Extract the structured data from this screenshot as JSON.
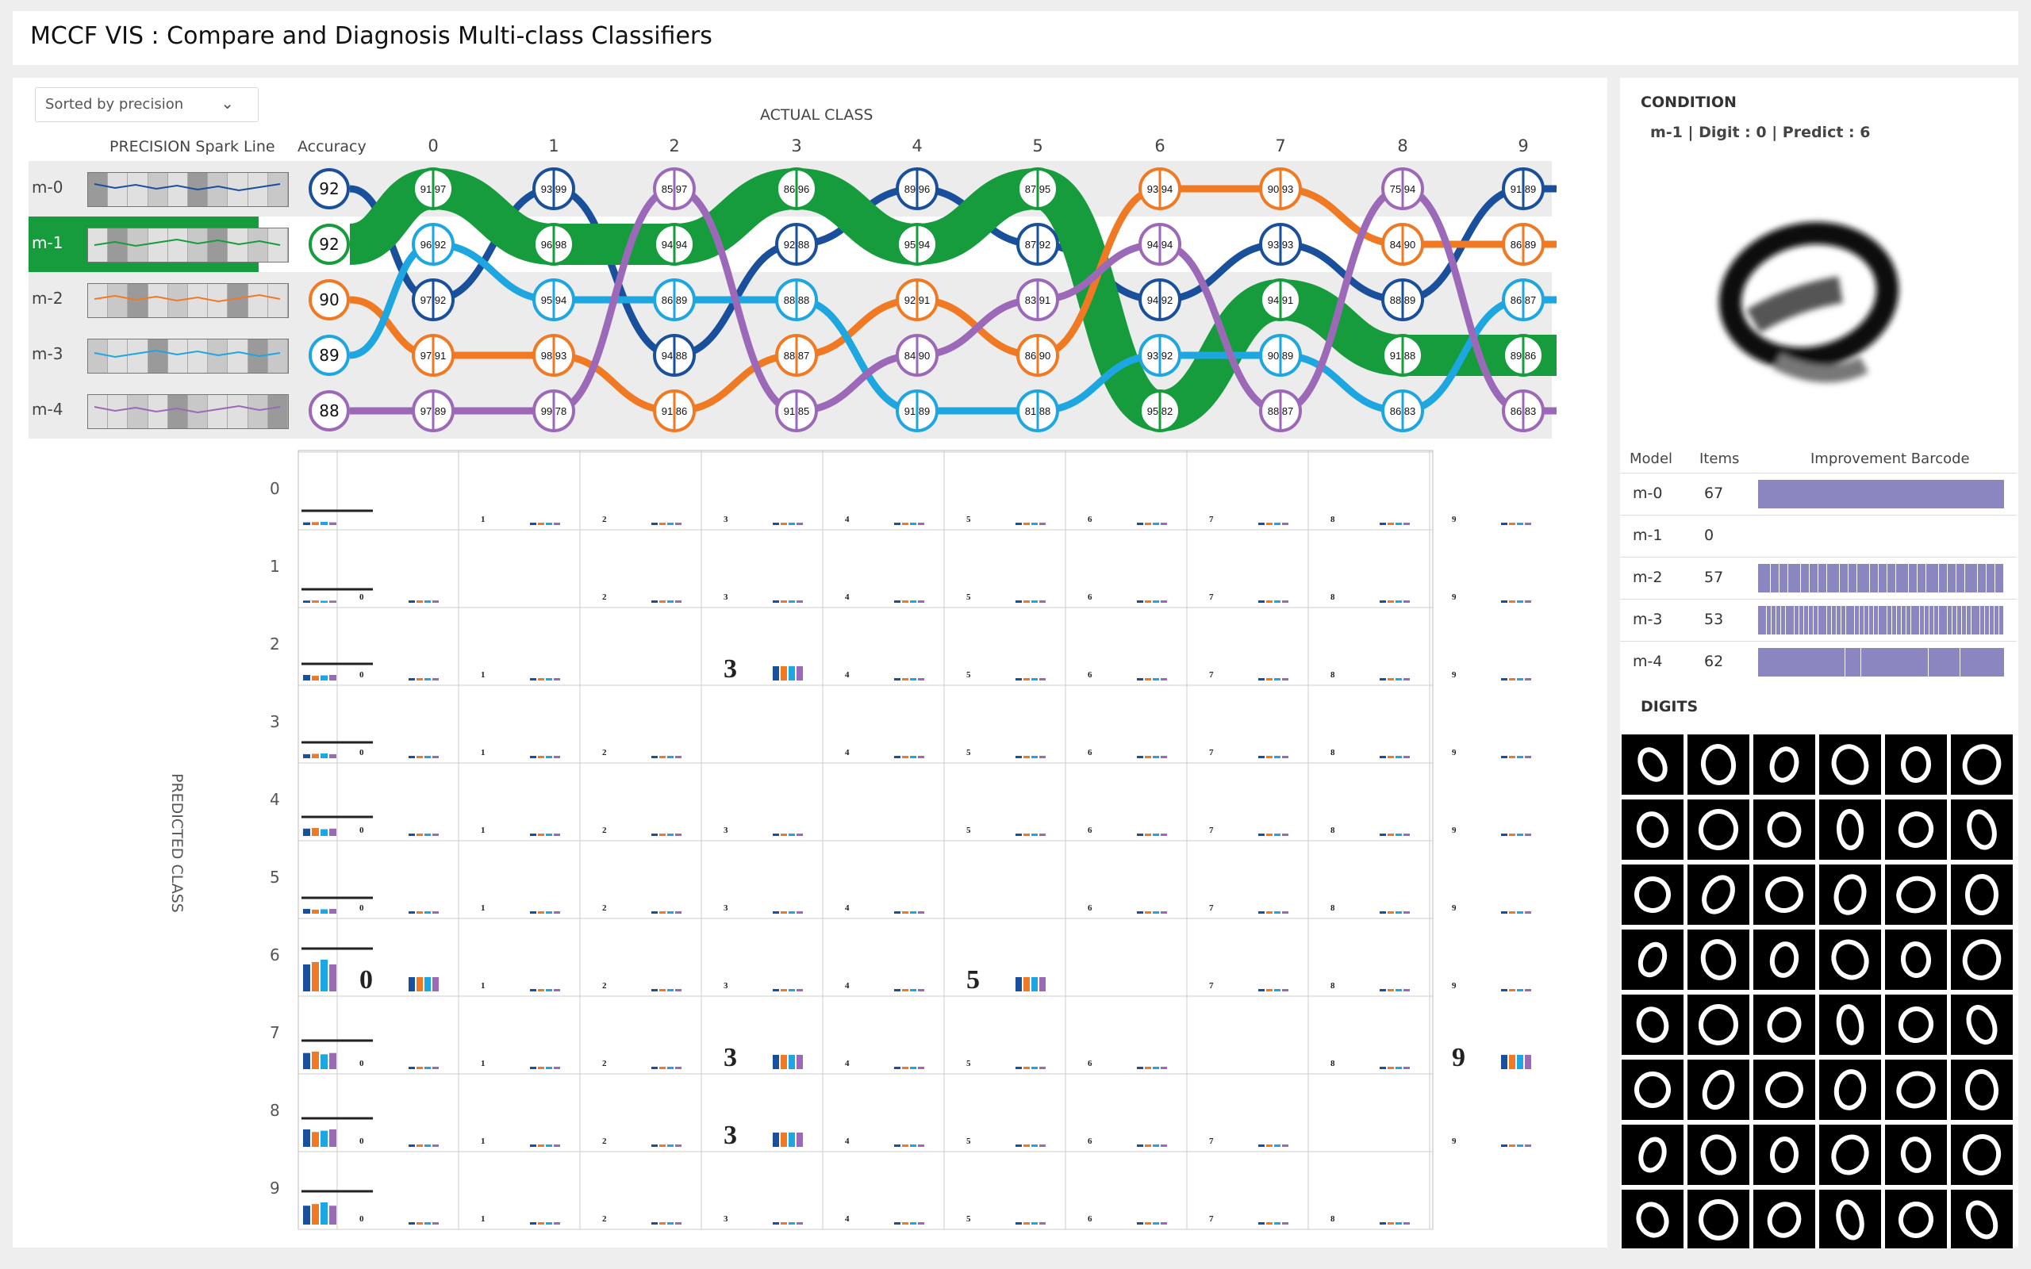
{
  "app": {
    "title": "MCCF VIS : Compare and Diagnosis Multi-class Classifiers"
  },
  "controls": {
    "sort_value": "Sorted by precision"
  },
  "headers": {
    "spark": "PRECISION Spark Line",
    "accuracy": "Accuracy",
    "actual": "ACTUAL CLASS",
    "predicted": "PREDICTED CLASS"
  },
  "classes": [
    "0",
    "1",
    "2",
    "3",
    "4",
    "5",
    "6",
    "7",
    "8",
    "9"
  ],
  "colors": {
    "m-0": "#1a4f9c",
    "m-1": "#169c3c",
    "m-2": "#f07a24",
    "m-3": "#1ea6e0",
    "m-4": "#9b69b8"
  },
  "models": [
    {
      "name": "m-0",
      "accuracy": "92",
      "selected": false
    },
    {
      "name": "m-1",
      "accuracy": "92",
      "selected": true
    },
    {
      "name": "m-2",
      "accuracy": "90",
      "selected": false
    },
    {
      "name": "m-3",
      "accuracy": "89",
      "selected": false
    },
    {
      "name": "m-4",
      "accuracy": "88",
      "selected": false
    }
  ],
  "class_columns": [
    {
      "class": "0",
      "nodes": [
        {
          "m": "m-1",
          "label": "91 97"
        },
        {
          "m": "m-3",
          "label": "96 92"
        },
        {
          "m": "m-0",
          "label": "97 92"
        },
        {
          "m": "m-2",
          "label": "97 91"
        },
        {
          "m": "m-4",
          "label": "97 89"
        }
      ]
    },
    {
      "class": "1",
      "nodes": [
        {
          "m": "m-0",
          "label": "93 99"
        },
        {
          "m": "m-1",
          "label": "96 98"
        },
        {
          "m": "m-3",
          "label": "95 94"
        },
        {
          "m": "m-2",
          "label": "98 93"
        },
        {
          "m": "m-4",
          "label": "99 78"
        }
      ]
    },
    {
      "class": "2",
      "nodes": [
        {
          "m": "m-4",
          "label": "85 97"
        },
        {
          "m": "m-1",
          "label": "94 94"
        },
        {
          "m": "m-3",
          "label": "86 89"
        },
        {
          "m": "m-0",
          "label": "94 88"
        },
        {
          "m": "m-2",
          "label": "91 86"
        }
      ]
    },
    {
      "class": "3",
      "nodes": [
        {
          "m": "m-1",
          "label": "86 96"
        },
        {
          "m": "m-0",
          "label": "92 88"
        },
        {
          "m": "m-3",
          "label": "88 88"
        },
        {
          "m": "m-2",
          "label": "88 87"
        },
        {
          "m": "m-4",
          "label": "91 85"
        }
      ]
    },
    {
      "class": "4",
      "nodes": [
        {
          "m": "m-0",
          "label": "89 96"
        },
        {
          "m": "m-1",
          "label": "95 94"
        },
        {
          "m": "m-2",
          "label": "92 91"
        },
        {
          "m": "m-4",
          "label": "84 90"
        },
        {
          "m": "m-3",
          "label": "91 89"
        }
      ]
    },
    {
      "class": "5",
      "nodes": [
        {
          "m": "m-1",
          "label": "87 95"
        },
        {
          "m": "m-0",
          "label": "87 92"
        },
        {
          "m": "m-4",
          "label": "83 91"
        },
        {
          "m": "m-2",
          "label": "86 90"
        },
        {
          "m": "m-3",
          "label": "81 88"
        }
      ]
    },
    {
      "class": "6",
      "nodes": [
        {
          "m": "m-2",
          "label": "93 94"
        },
        {
          "m": "m-4",
          "label": "94 94"
        },
        {
          "m": "m-0",
          "label": "94 92"
        },
        {
          "m": "m-3",
          "label": "93 92"
        },
        {
          "m": "m-1",
          "label": "95 82"
        }
      ]
    },
    {
      "class": "7",
      "nodes": [
        {
          "m": "m-2",
          "label": "90 93"
        },
        {
          "m": "m-0",
          "label": "93 93"
        },
        {
          "m": "m-1",
          "label": "94 91"
        },
        {
          "m": "m-3",
          "label": "90 89"
        },
        {
          "m": "m-4",
          "label": "88 87"
        }
      ]
    },
    {
      "class": "8",
      "nodes": [
        {
          "m": "m-4",
          "label": "75 94"
        },
        {
          "m": "m-2",
          "label": "84 90"
        },
        {
          "m": "m-0",
          "label": "88 89"
        },
        {
          "m": "m-1",
          "label": "91 88"
        },
        {
          "m": "m-3",
          "label": "86 83"
        }
      ]
    },
    {
      "class": "9",
      "nodes": [
        {
          "m": "m-0",
          "label": "91 89"
        },
        {
          "m": "m-2",
          "label": "86 89"
        },
        {
          "m": "m-3",
          "label": "86 87"
        },
        {
          "m": "m-1",
          "label": "89 86"
        },
        {
          "m": "m-4",
          "label": "86 83"
        }
      ]
    }
  ],
  "condition": {
    "title": "CONDITION",
    "text": "m-1 | Digit : 0 | Predict : 6"
  },
  "barcode_table": {
    "headers": [
      "Model",
      "Items",
      "Improvement Barcode"
    ],
    "rows": [
      {
        "model": "m-0",
        "items": "67"
      },
      {
        "model": "m-1",
        "items": "0"
      },
      {
        "model": "m-2",
        "items": "57"
      },
      {
        "model": "m-3",
        "items": "53"
      },
      {
        "model": "m-4",
        "items": "62"
      }
    ]
  },
  "digits": {
    "title": "DIGITS",
    "count": 48
  }
}
